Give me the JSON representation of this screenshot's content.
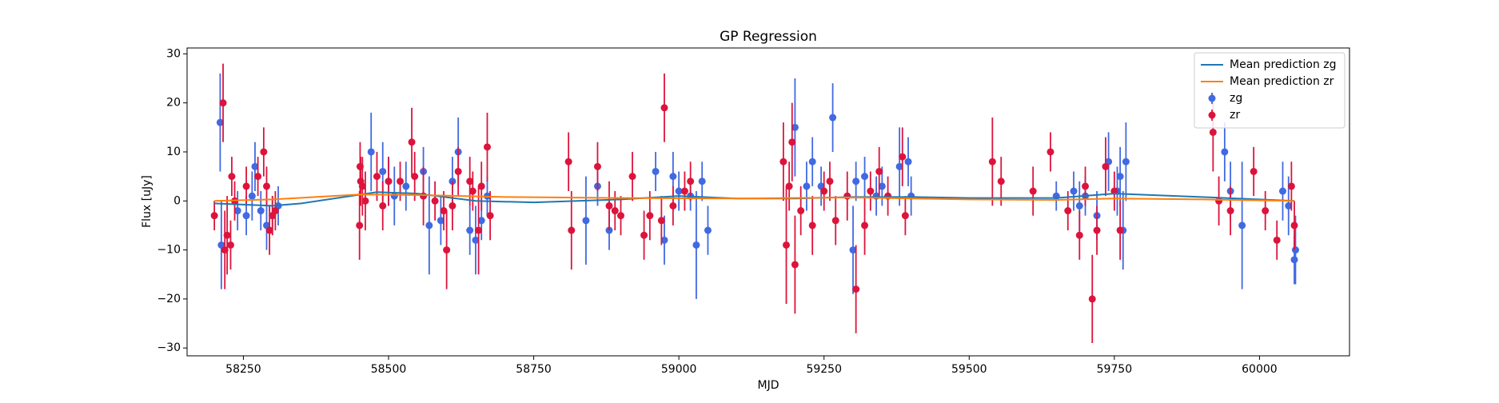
{
  "chart_data": {
    "type": "errorbar",
    "title": "GP Regression",
    "xlabel": "MJD",
    "ylabel": "Flux [uJy]",
    "xlim": [
      58153,
      60155
    ],
    "ylim": [
      -31.6,
      31.2
    ],
    "xticks": [
      58250,
      58500,
      58750,
      59000,
      59250,
      59500,
      59750,
      60000
    ],
    "yticks": [
      {
        "value": -30,
        "label": "−30"
      },
      {
        "value": -20,
        "label": "−20"
      },
      {
        "value": -10,
        "label": "−10"
      },
      0,
      10,
      20,
      30
    ],
    "legend": "upper right",
    "series": [
      {
        "name": "Mean prediction zg",
        "mode": "line",
        "color": "#1f77b4",
        "x": [
          58200,
          58300,
          58350,
          58480,
          58550,
          58650,
          58750,
          58900,
          59000,
          59100,
          59200,
          59300,
          59400,
          59500,
          59650,
          59750,
          59900,
          60060
        ],
        "values": [
          -0.5,
          -1,
          -0.5,
          1.8,
          1.5,
          0,
          -0.3,
          0.3,
          1,
          0.5,
          0.5,
          0.8,
          0.8,
          0.6,
          0.6,
          1.5,
          0.8,
          0
        ]
      },
      {
        "name": "Mean prediction zr",
        "mode": "line",
        "color": "#ff7f0e",
        "x": [
          58200,
          58300,
          58450,
          58550,
          58700,
          58900,
          59100,
          59300,
          59500,
          59650,
          59750,
          59900,
          60060
        ],
        "values": [
          0,
          0.3,
          1.3,
          1.2,
          0.8,
          0.6,
          0.5,
          0.7,
          0.3,
          0.2,
          0.5,
          0.3,
          0
        ]
      },
      {
        "name": "zg",
        "mode": "points",
        "color": "#4169e1",
        "x": [
          58210,
          58212,
          58240,
          58255,
          58265,
          58270,
          58280,
          58290,
          58300,
          58310,
          58470,
          58490,
          58500,
          58510,
          58530,
          58560,
          58570,
          58590,
          58610,
          58620,
          58640,
          58650,
          58660,
          58670,
          58840,
          58860,
          58880,
          58960,
          58975,
          58990,
          59000,
          59020,
          59030,
          59040,
          59050,
          59200,
          59220,
          59230,
          59245,
          59265,
          59300,
          59305,
          59320,
          59340,
          59350,
          59380,
          59395,
          59400,
          59650,
          59680,
          59690,
          59700,
          59720,
          59740,
          59755,
          59760,
          59765,
          59770,
          59940,
          59950,
          59970,
          60040,
          60050,
          60060,
          60062
        ],
        "values": [
          16,
          -9,
          -2,
          -3,
          1,
          7,
          -2,
          -5,
          -3,
          -1,
          10,
          6,
          4,
          1,
          3,
          6,
          -5,
          -4,
          4,
          10,
          -6,
          -8,
          -4,
          1,
          -4,
          3,
          -6,
          6,
          -8,
          5,
          2,
          1,
          -9,
          4,
          -6,
          15,
          3,
          8,
          3,
          17,
          -10,
          4,
          5,
          1,
          3,
          7,
          8,
          1,
          1,
          2,
          -1,
          1,
          -3,
          8,
          2,
          5,
          -6,
          8,
          10,
          2,
          -5,
          2,
          -1,
          -12,
          -10
        ],
        "errors": [
          10,
          9,
          4,
          4,
          5,
          5,
          4,
          5,
          4,
          4,
          8,
          6,
          5,
          6,
          5,
          5,
          10,
          5,
          5,
          7,
          5,
          7,
          4,
          4,
          9,
          4,
          4,
          4,
          5,
          5,
          4,
          3,
          11,
          4,
          5,
          10,
          5,
          5,
          4,
          7,
          9,
          4,
          4,
          4,
          4,
          8,
          5,
          4,
          3,
          4,
          5,
          4,
          5,
          6,
          5,
          6,
          8,
          8,
          6,
          6,
          13,
          6,
          6,
          5,
          7
        ]
      },
      {
        "name": "zr",
        "mode": "points",
        "color": "#dc143c",
        "x": [
          58200,
          58215,
          58218,
          58222,
          58228,
          58230,
          58235,
          58255,
          58275,
          58285,
          58290,
          58295,
          58300,
          58305,
          58450,
          58451,
          58452,
          58455,
          58460,
          58480,
          58490,
          58500,
          58520,
          58540,
          58545,
          58560,
          58580,
          58595,
          58600,
          58610,
          58620,
          58640,
          58645,
          58655,
          58660,
          58670,
          58675,
          58810,
          58815,
          58860,
          58880,
          58890,
          58900,
          58920,
          58940,
          58950,
          58970,
          58975,
          58990,
          59010,
          59020,
          59180,
          59185,
          59190,
          59195,
          59200,
          59210,
          59230,
          59250,
          59260,
          59270,
          59290,
          59305,
          59320,
          59330,
          59345,
          59360,
          59385,
          59390,
          59540,
          59555,
          59610,
          59640,
          59670,
          59690,
          59700,
          59712,
          59720,
          59735,
          59750,
          59760,
          59920,
          59930,
          59950,
          59990,
          60010,
          60030,
          60055,
          60060
        ],
        "values": [
          -3,
          20,
          -10,
          -7,
          -9,
          5,
          0,
          3,
          5,
          10,
          3,
          -6,
          -3,
          -2,
          -5,
          7,
          4,
          3,
          0,
          5,
          -1,
          4,
          4,
          12,
          5,
          1,
          0,
          -2,
          -10,
          -1,
          6,
          4,
          2,
          -6,
          3,
          11,
          -3,
          8,
          -6,
          7,
          -1,
          -2,
          -3,
          5,
          -7,
          -3,
          -4,
          19,
          -1,
          2,
          4,
          8,
          -9,
          3,
          12,
          -13,
          -2,
          -5,
          2,
          4,
          -4,
          1,
          -18,
          -5,
          2,
          6,
          1,
          9,
          -3,
          8,
          4,
          2,
          10,
          -2,
          -7,
          3,
          -20,
          -6,
          7,
          2,
          -6,
          14,
          0,
          -2,
          6,
          -2,
          -8,
          3,
          -5
        ],
        "errors": [
          3,
          8,
          8,
          8,
          5,
          4,
          4,
          4,
          4,
          5,
          4,
          5,
          4,
          4,
          7,
          5,
          5,
          6,
          6,
          5,
          5,
          5,
          4,
          7,
          5,
          6,
          4,
          4,
          8,
          5,
          5,
          5,
          4,
          9,
          5,
          7,
          5,
          6,
          8,
          5,
          5,
          4,
          4,
          5,
          5,
          5,
          5,
          7,
          4,
          4,
          4,
          8,
          12,
          5,
          8,
          10,
          5,
          6,
          4,
          4,
          5,
          5,
          9,
          6,
          4,
          5,
          4,
          6,
          4,
          9,
          5,
          5,
          4,
          4,
          5,
          4,
          9,
          5,
          6,
          4,
          6,
          8,
          5,
          5,
          5,
          4,
          4,
          5,
          5
        ]
      }
    ]
  }
}
